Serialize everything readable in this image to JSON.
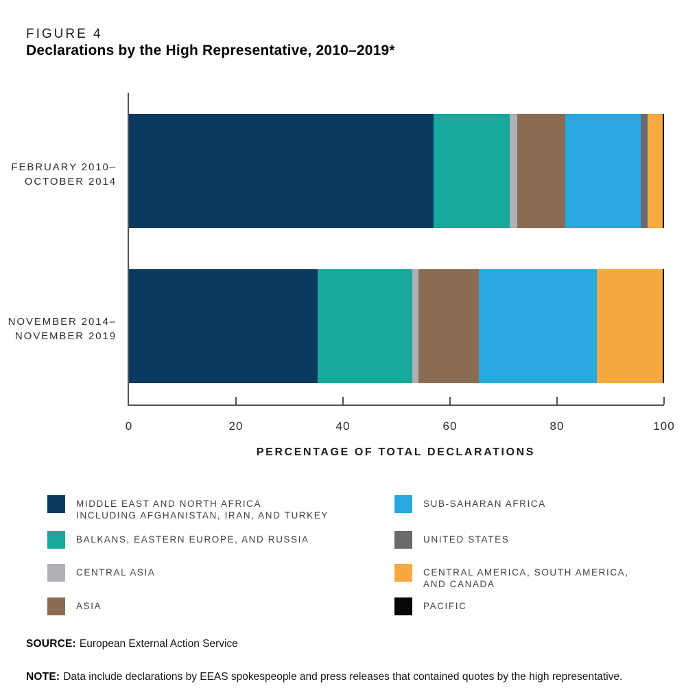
{
  "header": {
    "figure_label": "FIGURE 4",
    "title": "Declarations by the High Representative, 2010–2019*"
  },
  "chart_data": {
    "type": "bar",
    "orientation": "horizontal-stacked",
    "title": "Declarations by the High Representative, 2010–2019*",
    "categories": [
      "FEBRUARY 2010–OCTOBER 2014",
      "NOVEMBER 2014–NOVEMBER 2019"
    ],
    "category_labels": [
      [
        "FEBRUARY 2010–",
        "OCTOBER 2014"
      ],
      [
        "NOVEMBER 2014–",
        "NOVEMBER 2019"
      ]
    ],
    "series": [
      {
        "name": "MIDDLE EAST AND NORTH AFRICA INCLUDING AFGHANISTAN, IRAN, AND TURKEY",
        "color": "#0C3A5E",
        "values": [
          56.9,
          35.3
        ]
      },
      {
        "name": "BALKANS, EASTERN EUROPE, AND RUSSIA",
        "color": "#17A79B",
        "values": [
          14.3,
          17.7
        ]
      },
      {
        "name": "CENTRAL ASIA",
        "color": "#AFB1B4",
        "values": [
          1.4,
          1.1
        ]
      },
      {
        "name": "ASIA",
        "color": "#8A6C52",
        "values": [
          8.9,
          11.3
        ]
      },
      {
        "name": "SUB-SAHARAN AFRICA",
        "color": "#29A8E0",
        "values": [
          14.2,
          22.1
        ]
      },
      {
        "name": "UNITED STATES",
        "color": "#6A6B6E",
        "values": [
          1.2,
          0
        ]
      },
      {
        "name": "CENTRAL AMERICA, SOUTH AMERICA, AND CANADA",
        "color": "#F7A840",
        "values": [
          2.8,
          12.2
        ]
      },
      {
        "name": "PACIFIC",
        "color": "#070707",
        "values": [
          0.3,
          0.3
        ]
      }
    ],
    "xlabel": "PERCENTAGE OF TOTAL DECLARATIONS",
    "x_ticks": [
      0,
      20,
      40,
      60,
      80,
      100
    ],
    "xlim": [
      0,
      100
    ],
    "grid": false,
    "legend_position": "bottom"
  },
  "legend": {
    "items": [
      {
        "label": "MIDDLE EAST AND NORTH AFRICA\nINCLUDING AFGHANISTAN, IRAN, AND TURKEY",
        "color": "#0C3A5E"
      },
      {
        "label": "BALKANS, EASTERN EUROPE, AND RUSSIA",
        "color": "#17A79B"
      },
      {
        "label": "CENTRAL ASIA",
        "color": "#AFB1B4"
      },
      {
        "label": "ASIA",
        "color": "#8A6C52"
      },
      {
        "label": "SUB-SAHARAN AFRICA",
        "color": "#29A8E0"
      },
      {
        "label": "UNITED STATES",
        "color": "#6A6B6E"
      },
      {
        "label": "CENTRAL AMERICA, SOUTH AMERICA,\nAND CANADA",
        "color": "#F7A840"
      },
      {
        "label": "PACIFIC",
        "color": "#070707"
      }
    ]
  },
  "footer": {
    "source_label": "SOURCE:",
    "source_text": "European External Action Service",
    "note_label": "NOTE:",
    "note_text": "Data include declarations by EEAS spokespeople and press releases that contained quotes by the high representative."
  }
}
